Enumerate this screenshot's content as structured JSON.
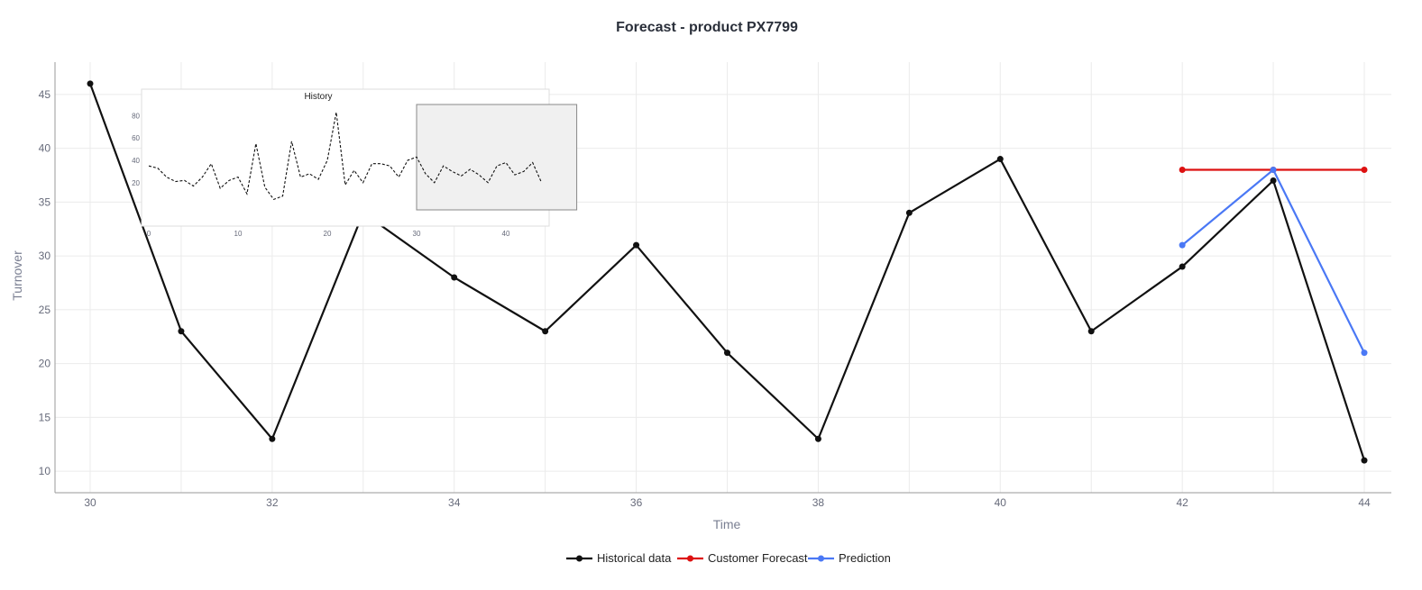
{
  "chart_data": {
    "type": "line",
    "title": "Forecast - product PX7799",
    "xlabel": "Time",
    "ylabel": "Turnover",
    "xlim": [
      30,
      44
    ],
    "ylim": [
      8,
      48
    ],
    "x_ticks": [
      30,
      32,
      34,
      36,
      38,
      40,
      42,
      44
    ],
    "y_ticks": [
      10,
      15,
      20,
      25,
      30,
      35,
      40,
      45
    ],
    "grid": true,
    "legend_placement": "bottom-center",
    "series": [
      {
        "name": "Historical data",
        "color": "#111111",
        "x": [
          30,
          31,
          32,
          33,
          34,
          35,
          36,
          37,
          38,
          39,
          40,
          41,
          42,
          43,
          44
        ],
        "values": [
          46,
          23,
          13,
          34,
          28,
          23,
          31,
          21,
          13,
          34,
          39,
          23,
          29,
          37,
          11
        ]
      },
      {
        "name": "Customer Forecast",
        "color": "#dd1111",
        "x": [
          42,
          43,
          44
        ],
        "values": [
          38,
          38,
          38
        ]
      },
      {
        "name": "Prediction",
        "color": "#4a78f5",
        "x": [
          42,
          43,
          44
        ],
        "values": [
          31,
          38,
          21
        ]
      }
    ],
    "inset": {
      "type": "line",
      "title": "History",
      "xlim": [
        -1,
        45
      ],
      "ylim": [
        -10,
        90
      ],
      "x_ticks": [
        0,
        10,
        20,
        30,
        40
      ],
      "y_ticks": [
        20,
        40,
        60,
        80
      ],
      "line_style": "dashed",
      "selection_range": [
        30,
        44
      ],
      "x": [
        0,
        1,
        2,
        3,
        4,
        5,
        6,
        7,
        8,
        9,
        10,
        11,
        12,
        13,
        14,
        15,
        16,
        17,
        18,
        19,
        20,
        21,
        22,
        23,
        24,
        25,
        26,
        27,
        28,
        29,
        30,
        31,
        32,
        33,
        34,
        35,
        36,
        37,
        38,
        39,
        40,
        41,
        42,
        43,
        44
      ],
      "values": [
        35,
        33,
        25,
        21,
        22,
        17,
        25,
        37,
        15,
        22,
        25,
        10,
        55,
        16,
        5,
        8,
        57,
        25,
        28,
        23,
        40,
        83,
        18,
        31,
        20,
        37,
        37,
        35,
        25,
        40,
        43,
        28,
        20,
        35,
        30,
        26,
        32,
        27,
        20,
        35,
        38,
        27,
        30,
        38,
        20
      ]
    }
  }
}
